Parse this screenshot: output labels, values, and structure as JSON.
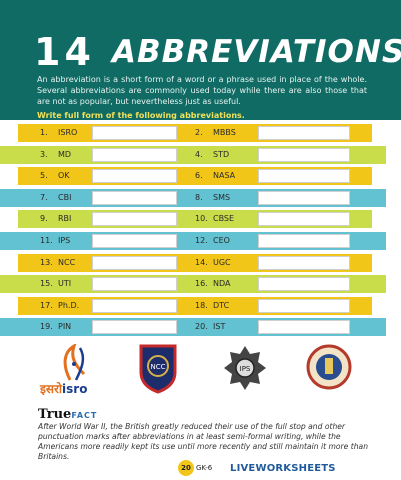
{
  "header": {
    "title_number": "14",
    "title_word": "ABBREVIATIONS",
    "intro": "An abbreviation is a short form of a word or a phrase used in place of the whole. Several abbreviations are commonly used today while there are also those that are not as popular, but nevertheless just as useful.",
    "instruction": "Write full form of the following abbreviations."
  },
  "rows": [
    {
      "left": {
        "n": "1.",
        "abbr": "ISRO"
      },
      "right": {
        "n": "2.",
        "abbr": "MBBS"
      },
      "color": "#f2c619"
    },
    {
      "left": {
        "n": "3.",
        "abbr": "MD"
      },
      "right": {
        "n": "4.",
        "abbr": "STD"
      },
      "color": "#c9dc4a"
    },
    {
      "left": {
        "n": "5.",
        "abbr": "OK"
      },
      "right": {
        "n": "6.",
        "abbr": "NASA"
      },
      "color": "#f2c619"
    },
    {
      "left": {
        "n": "7.",
        "abbr": "CBI"
      },
      "right": {
        "n": "8.",
        "abbr": "SMS"
      },
      "color": "#62c2d2"
    },
    {
      "left": {
        "n": "9.",
        "abbr": "RBI"
      },
      "right": {
        "n": "10.",
        "abbr": "CBSE"
      },
      "color": "#c9dc4a"
    },
    {
      "left": {
        "n": "11.",
        "abbr": "IPS"
      },
      "right": {
        "n": "12.",
        "abbr": "CEO"
      },
      "color": "#62c2d2"
    },
    {
      "left": {
        "n": "13.",
        "abbr": "NCC"
      },
      "right": {
        "n": "14.",
        "abbr": "UGC"
      },
      "color": "#f2c619"
    },
    {
      "left": {
        "n": "15.",
        "abbr": "UTI"
      },
      "right": {
        "n": "16.",
        "abbr": "NDA"
      },
      "color": "#c9dc4a"
    },
    {
      "left": {
        "n": "17.",
        "abbr": "Ph.D."
      },
      "right": {
        "n": "18.",
        "abbr": "DTC"
      },
      "color": "#f2c619"
    },
    {
      "left": {
        "n": "19.",
        "abbr": "PIN"
      },
      "right": {
        "n": "20.",
        "abbr": "IST"
      },
      "color": "#62c2d2"
    }
  ],
  "emblems": {
    "isro_hindi": "इसरो",
    "isro_english": "isro",
    "ncc_label": "NCC"
  },
  "true_fact": {
    "word_true": "True",
    "word_fact": "FACT",
    "text": "After World War II, the British greatly reduced their use of the full stop and other punctuation marks after abbreviations in at least semi-formal writing, while the Americans more readily kept its use until more recently and still maintain it more than Britains."
  },
  "footer": {
    "page_number": "20",
    "page_label": "GK-6",
    "brand": "LIVEWORKSHEETS"
  },
  "colors": {
    "header_bg": "#0f6b64",
    "yellow": "#f2c619",
    "green": "#c9dc4a",
    "teal": "#62c2d2"
  }
}
